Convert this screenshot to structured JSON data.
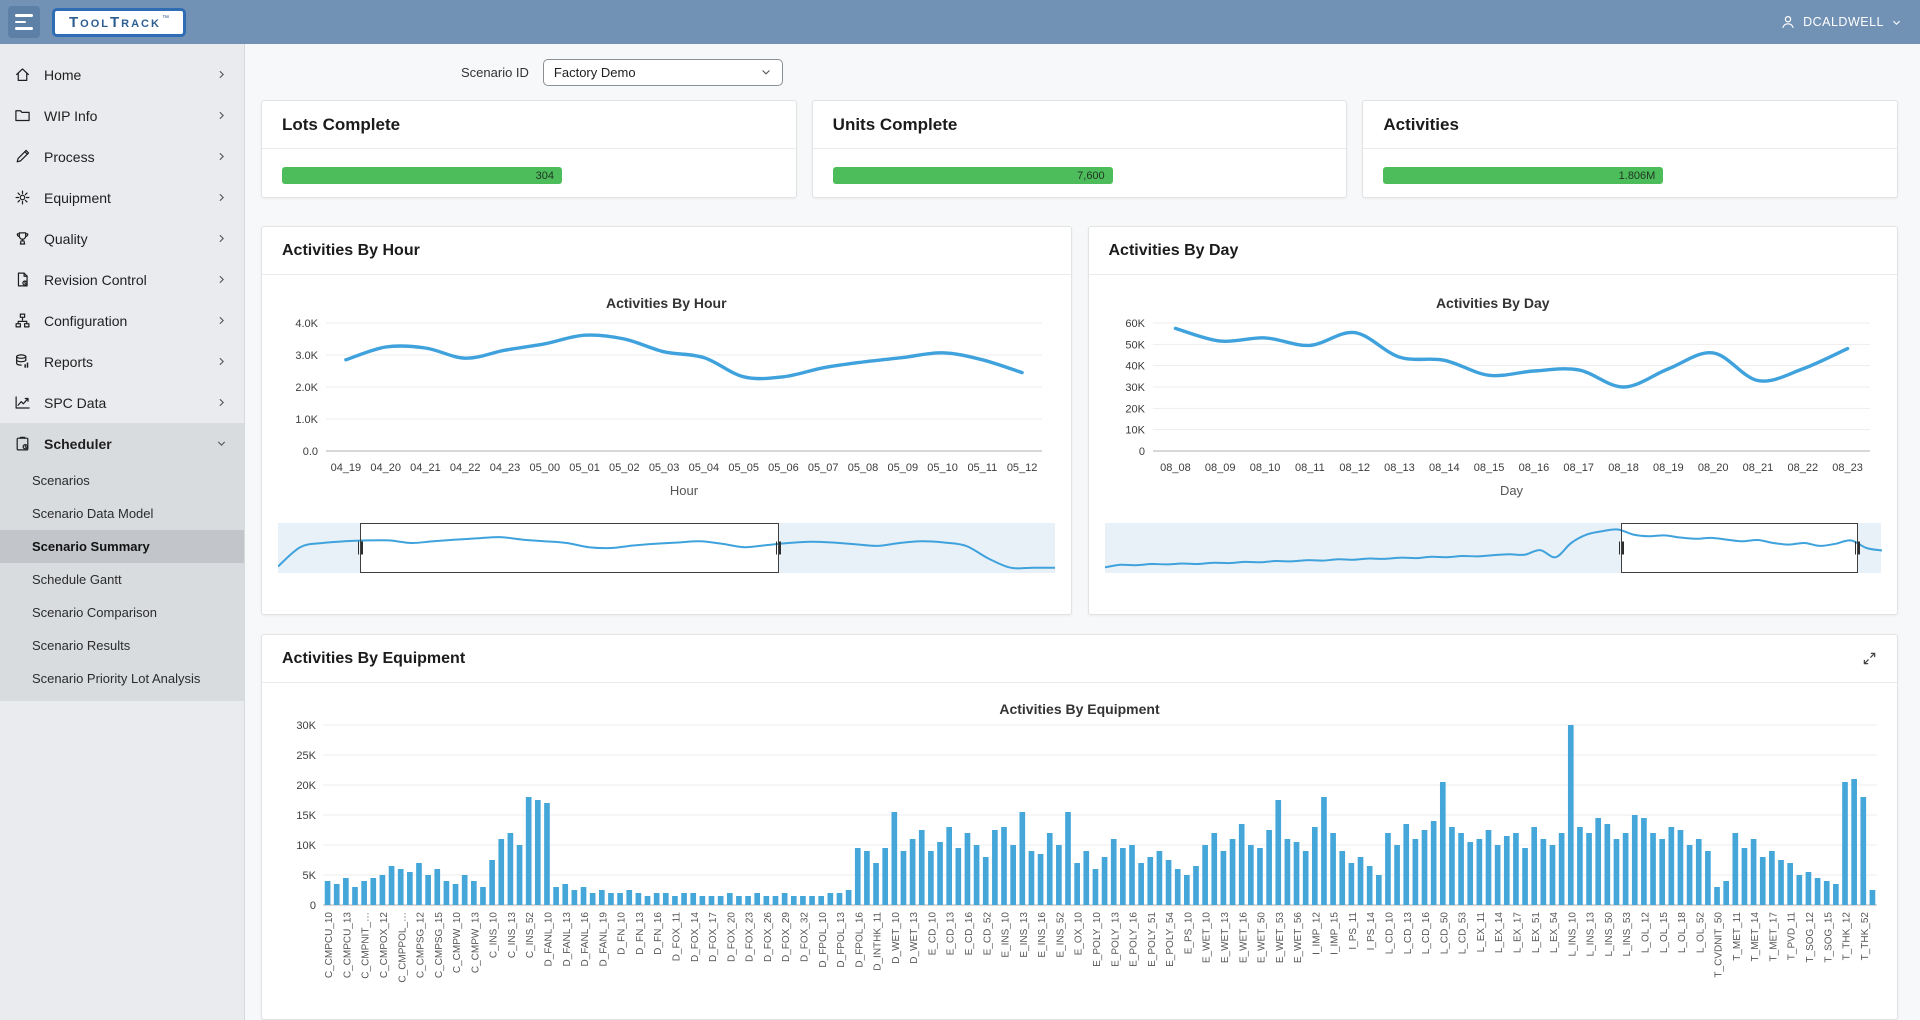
{
  "header": {
    "logo_text": "ToolTrack",
    "logo_tm": "™",
    "user_name": "DCALDWELL"
  },
  "sidebar": {
    "items": [
      {
        "label": "Home",
        "icon": "home"
      },
      {
        "label": "WIP Info",
        "icon": "folder"
      },
      {
        "label": "Process",
        "icon": "pencil"
      },
      {
        "label": "Equipment",
        "icon": "gear"
      },
      {
        "label": "Quality",
        "icon": "trophy"
      },
      {
        "label": "Revision Control",
        "icon": "document"
      },
      {
        "label": "Configuration",
        "icon": "sitemap"
      },
      {
        "label": "Reports",
        "icon": "report"
      },
      {
        "label": "SPC Data",
        "icon": "spc"
      },
      {
        "label": "Scheduler",
        "icon": "clipboard",
        "expanded": true
      }
    ],
    "scheduler_subitems": [
      {
        "label": "Scenarios",
        "selected": false
      },
      {
        "label": "Scenario Data Model",
        "selected": false
      },
      {
        "label": "Scenario Summary",
        "selected": true
      },
      {
        "label": "Schedule Gantt",
        "selected": false
      },
      {
        "label": "Scenario Comparison",
        "selected": false
      },
      {
        "label": "Scenario Results",
        "selected": false
      },
      {
        "label": "Scenario Priority Lot Analysis",
        "selected": false
      }
    ]
  },
  "toolbar": {
    "scenario_label": "Scenario ID",
    "scenario_value": "Factory Demo"
  },
  "kpis": [
    {
      "title": "Lots Complete",
      "value": "304"
    },
    {
      "title": "Units Complete",
      "value": "7,600"
    },
    {
      "title": "Activities",
      "value": "1.806M"
    }
  ],
  "chart_data": [
    {
      "type": "line",
      "card_title": "Activities By Hour",
      "title": "Activities By Hour",
      "xlabel": "Hour",
      "categories": [
        "04_19",
        "04_20",
        "04_21",
        "04_22",
        "04_23",
        "05_00",
        "05_01",
        "05_02",
        "05_03",
        "05_04",
        "05_05",
        "05_06",
        "05_07",
        "05_08",
        "05_09",
        "05_10",
        "05_11",
        "05_12"
      ],
      "values": [
        2850,
        3250,
        3220,
        2900,
        3150,
        3350,
        3620,
        3500,
        3100,
        2920,
        2320,
        2320,
        2600,
        2780,
        2920,
        3070,
        2850,
        2450
      ],
      "ylim": [
        0,
        4000
      ],
      "yticks": [
        0,
        1000,
        2000,
        3000,
        4000
      ],
      "ytick_labels": [
        "0.0",
        "1.0K",
        "2.0K",
        "3.0K",
        "4.0K"
      ],
      "line_color": "#3fa2dc",
      "grid": true,
      "brush": {
        "window": [
          0.105,
          0.645
        ],
        "series": [
          0.06,
          0.52,
          0.62,
          0.66,
          0.68,
          0.68,
          0.62,
          0.66,
          0.7,
          0.73,
          0.76,
          0.7,
          0.66,
          0.62,
          0.52,
          0.5,
          0.56,
          0.6,
          0.63,
          0.66,
          0.6,
          0.52,
          0.57,
          0.62,
          0.65,
          0.63,
          0.59,
          0.55,
          0.62,
          0.66,
          0.63,
          0.55,
          0.25,
          0.03,
          0.03,
          0.03
        ]
      }
    },
    {
      "type": "line",
      "card_title": "Activities By Day",
      "title": "Activities By Day",
      "xlabel": "Day",
      "categories": [
        "08_08",
        "08_09",
        "08_10",
        "08_11",
        "08_12",
        "08_13",
        "08_14",
        "08_15",
        "08_16",
        "08_17",
        "08_18",
        "08_19",
        "08_20",
        "08_21",
        "08_22",
        "08_23"
      ],
      "values": [
        57500,
        51500,
        53000,
        49500,
        55500,
        44000,
        42500,
        35500,
        37500,
        38000,
        30000,
        38500,
        46000,
        33000,
        38500,
        48000
      ],
      "ylim": [
        0,
        60000
      ],
      "yticks": [
        0,
        10000,
        20000,
        30000,
        40000,
        50000,
        60000
      ],
      "ytick_labels": [
        "0",
        "10K",
        "20K",
        "30K",
        "40K",
        "50K",
        "60K"
      ],
      "line_color": "#3fa2dc",
      "grid": true,
      "brush": {
        "window": [
          0.665,
          0.97
        ],
        "series": [
          0.04,
          0.1,
          0.09,
          0.12,
          0.11,
          0.13,
          0.12,
          0.15,
          0.14,
          0.17,
          0.16,
          0.19,
          0.18,
          0.21,
          0.2,
          0.23,
          0.22,
          0.25,
          0.24,
          0.27,
          0.26,
          0.29,
          0.28,
          0.31,
          0.3,
          0.33,
          0.35,
          0.34,
          0.45,
          0.28,
          0.62,
          0.82,
          0.9,
          0.94,
          0.82,
          0.78,
          0.8,
          0.75,
          0.72,
          0.74,
          0.7,
          0.66,
          0.69,
          0.62,
          0.58,
          0.62,
          0.55,
          0.6,
          0.68,
          0.5,
          0.44
        ]
      }
    },
    {
      "type": "bar",
      "card_title": "Activities By Equipment",
      "title": "Activities By Equipment",
      "xlabel": "Equipment",
      "bars_per_label": 2,
      "categories": [
        "C_CMPCU_10",
        "C_CMPCU_13",
        "C_CMPNIT_…",
        "C_CMPOX_12",
        "C_CMPPOL_…",
        "C_CMPSG_12",
        "C_CMPSG_15",
        "C_CMPW_10",
        "C_CMPW_13",
        "C_INS_10",
        "C_INS_13",
        "C_INS_52",
        "D_FANL_10",
        "D_FANL_13",
        "D_FANL_16",
        "D_FANL_19",
        "D_FN_10",
        "D_FN_13",
        "D_FN_16",
        "D_FOX_11",
        "D_FOX_14",
        "D_FOX_17",
        "D_FOX_20",
        "D_FOX_23",
        "D_FOX_26",
        "D_FOX_29",
        "D_FOX_32",
        "D_FPOL_10",
        "D_FPOL_13",
        "D_FPOL_16",
        "D_INTHK_11",
        "D_WET_10",
        "D_WET_13",
        "E_CD_10",
        "E_CD_13",
        "E_CD_16",
        "E_CD_52",
        "E_INS_10",
        "E_INS_13",
        "E_INS_16",
        "E_INS_52",
        "E_OX_10",
        "E_POLY_10",
        "E_POLY_13",
        "E_POLY_16",
        "E_POLY_51",
        "E_POLY_54",
        "E_PS_10",
        "E_WET_10",
        "E_WET_13",
        "E_WET_16",
        "E_WET_50",
        "E_WET_53",
        "E_WET_56",
        "I_IMP_12",
        "I_IMP_15",
        "I_PS_11",
        "I_PS_14",
        "L_CD_10",
        "L_CD_13",
        "L_CD_16",
        "L_CD_50",
        "L_CD_53",
        "L_EX_11",
        "L_EX_14",
        "L_EX_17",
        "L_EX_51",
        "L_EX_54",
        "L_INS_10",
        "L_INS_13",
        "L_INS_50",
        "L_INS_53",
        "L_OL_12",
        "L_OL_15",
        "L_OL_18",
        "L_OL_52",
        "T_CVDNIT_50",
        "T_MET_11",
        "T_MET_14",
        "T_MET_17",
        "T_PVD_11",
        "T_SOG_12",
        "T_SOG_15",
        "T_THK_12",
        "T_THK_52"
      ],
      "values": [
        4000,
        3500,
        4500,
        3000,
        4000,
        4500,
        5000,
        6500,
        6000,
        5500,
        7000,
        5000,
        6000,
        4000,
        3500,
        5000,
        4000,
        3000,
        7500,
        11000,
        12000,
        10000,
        18000,
        17500,
        17000,
        3000,
        3500,
        2500,
        3000,
        2000,
        2500,
        2000,
        2000,
        2500,
        2000,
        1500,
        2000,
        2000,
        1500,
        2000,
        2000,
        1500,
        1500,
        1500,
        2000,
        1500,
        1500,
        2000,
        1500,
        1500,
        2000,
        1500,
        1500,
        1500,
        1500,
        2000,
        2000,
        2500,
        9500,
        9000,
        7000,
        9500,
        15500,
        9000,
        11000,
        12500,
        9000,
        10500,
        13000,
        9500,
        12000,
        10000,
        8000,
        12500,
        13000,
        10000,
        15500,
        9000,
        8500,
        12000,
        10000,
        15500,
        7000,
        9000,
        6000,
        8000,
        11000,
        9500,
        10000,
        7000,
        8000,
        9000,
        7500,
        6000,
        5000,
        6500,
        10000,
        12000,
        9000,
        11000,
        13500,
        10000,
        9500,
        12500,
        17500,
        11000,
        10500,
        9000,
        13000,
        18000,
        12000,
        9000,
        7000,
        8000,
        6500,
        5000,
        12000,
        10000,
        13500,
        11000,
        12500,
        14000,
        20500,
        13000,
        12000,
        10500,
        11000,
        12500,
        10000,
        11500,
        12000,
        9500,
        13000,
        11000,
        10000,
        12000,
        30000,
        13000,
        12000,
        14500,
        13500,
        11000,
        12000,
        15000,
        14500,
        12000,
        11000,
        13000,
        12500,
        10000,
        11000,
        9000,
        3000,
        4000,
        12000,
        9500,
        11000,
        8000,
        9000,
        7500,
        7000,
        5000,
        5500,
        4500,
        4000,
        3500,
        20500,
        21000,
        18000,
        2500
      ],
      "ylim": [
        0,
        30000
      ],
      "yticks": [
        0,
        5000,
        10000,
        15000,
        20000,
        25000,
        30000
      ],
      "ytick_labels": [
        "0",
        "5K",
        "10K",
        "15K",
        "20K",
        "25K",
        "30K"
      ],
      "bar_color": "#45a7d9",
      "grid": true
    }
  ],
  "colors": {
    "header_bg": "#7191b5",
    "accent_blue": "#3fa2dc",
    "kpi_green": "#4dbd5c",
    "sidebar_bg": "#e9ebee",
    "sidebar_section_bg": "#d9dcdf",
    "sidebar_selected_bg": "#c2c6cb"
  }
}
